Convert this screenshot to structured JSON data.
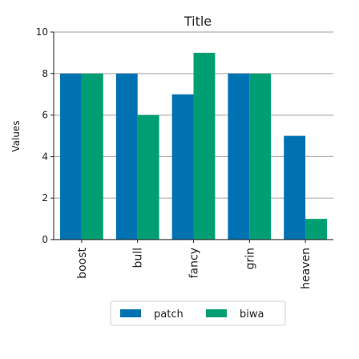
{
  "chart_data": {
    "type": "bar",
    "title": "Title",
    "xlabel": "",
    "ylabel": "Values",
    "ylim": [
      0,
      10
    ],
    "yticks": [
      0,
      2,
      4,
      6,
      8,
      10
    ],
    "grid": true,
    "legend_position": "bottom",
    "categories": [
      "boost",
      "bull",
      "fancy",
      "grin",
      "heaven"
    ],
    "series": [
      {
        "name": "patch",
        "color": "#0072b2",
        "values": [
          8,
          8,
          7,
          8,
          5
        ]
      },
      {
        "name": "biwa",
        "color": "#009e73",
        "values": [
          8,
          6,
          9,
          8,
          1
        ]
      }
    ]
  }
}
